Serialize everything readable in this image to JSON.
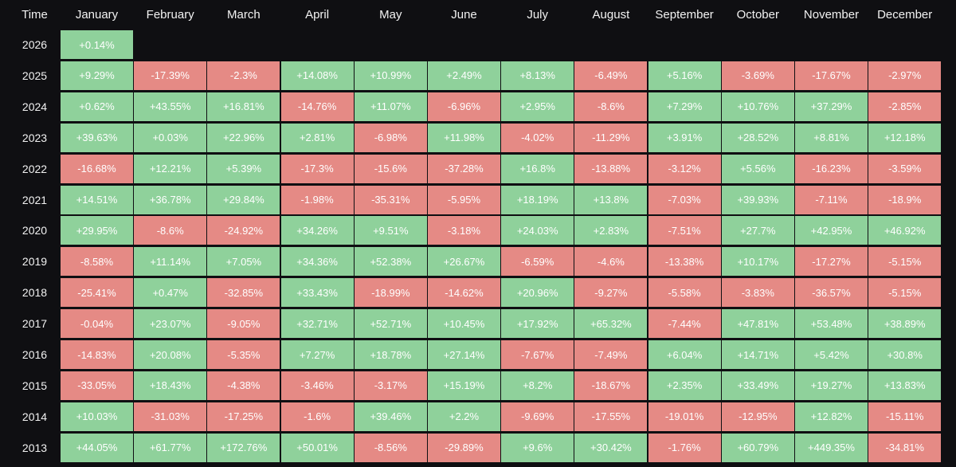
{
  "chart_data": {
    "type": "table",
    "header_label": "Time",
    "months": [
      "January",
      "February",
      "March",
      "April",
      "May",
      "June",
      "July",
      "August",
      "September",
      "October",
      "November",
      "December"
    ],
    "colors": {
      "positive": "#8fd19b",
      "negative": "#e58a85",
      "background": "#0f0f12"
    },
    "rows": [
      {
        "year": "2026",
        "values": [
          "+0.14%"
        ]
      },
      {
        "year": "2025",
        "values": [
          "+9.29%",
          "-17.39%",
          "-2.3%",
          "+14.08%",
          "+10.99%",
          "+2.49%",
          "+8.13%",
          "-6.49%",
          "+5.16%",
          "-3.69%",
          "-17.67%",
          "-2.97%"
        ]
      },
      {
        "year": "2024",
        "values": [
          "+0.62%",
          "+43.55%",
          "+16.81%",
          "-14.76%",
          "+11.07%",
          "-6.96%",
          "+2.95%",
          "-8.6%",
          "+7.29%",
          "+10.76%",
          "+37.29%",
          "-2.85%"
        ]
      },
      {
        "year": "2023",
        "values": [
          "+39.63%",
          "+0.03%",
          "+22.96%",
          "+2.81%",
          "-6.98%",
          "+11.98%",
          "-4.02%",
          "-11.29%",
          "+3.91%",
          "+28.52%",
          "+8.81%",
          "+12.18%"
        ]
      },
      {
        "year": "2022",
        "values": [
          "-16.68%",
          "+12.21%",
          "+5.39%",
          "-17.3%",
          "-15.6%",
          "-37.28%",
          "+16.8%",
          "-13.88%",
          "-3.12%",
          "+5.56%",
          "-16.23%",
          "-3.59%"
        ]
      },
      {
        "year": "2021",
        "values": [
          "+14.51%",
          "+36.78%",
          "+29.84%",
          "-1.98%",
          "-35.31%",
          "-5.95%",
          "+18.19%",
          "+13.8%",
          "-7.03%",
          "+39.93%",
          "-7.11%",
          "-18.9%"
        ]
      },
      {
        "year": "2020",
        "values": [
          "+29.95%",
          "-8.6%",
          "-24.92%",
          "+34.26%",
          "+9.51%",
          "-3.18%",
          "+24.03%",
          "+2.83%",
          "-7.51%",
          "+27.7%",
          "+42.95%",
          "+46.92%"
        ]
      },
      {
        "year": "2019",
        "values": [
          "-8.58%",
          "+11.14%",
          "+7.05%",
          "+34.36%",
          "+52.38%",
          "+26.67%",
          "-6.59%",
          "-4.6%",
          "-13.38%",
          "+10.17%",
          "-17.27%",
          "-5.15%"
        ]
      },
      {
        "year": "2018",
        "values": [
          "-25.41%",
          "+0.47%",
          "-32.85%",
          "+33.43%",
          "-18.99%",
          "-14.62%",
          "+20.96%",
          "-9.27%",
          "-5.58%",
          "-3.83%",
          "-36.57%",
          "-5.15%"
        ]
      },
      {
        "year": "2017",
        "values": [
          "-0.04%",
          "+23.07%",
          "-9.05%",
          "+32.71%",
          "+52.71%",
          "+10.45%",
          "+17.92%",
          "+65.32%",
          "-7.44%",
          "+47.81%",
          "+53.48%",
          "+38.89%"
        ]
      },
      {
        "year": "2016",
        "values": [
          "-14.83%",
          "+20.08%",
          "-5.35%",
          "+7.27%",
          "+18.78%",
          "+27.14%",
          "-7.67%",
          "-7.49%",
          "+6.04%",
          "+14.71%",
          "+5.42%",
          "+30.8%"
        ]
      },
      {
        "year": "2015",
        "values": [
          "-33.05%",
          "+18.43%",
          "-4.38%",
          "-3.46%",
          "-3.17%",
          "+15.19%",
          "+8.2%",
          "-18.67%",
          "+2.35%",
          "+33.49%",
          "+19.27%",
          "+13.83%"
        ]
      },
      {
        "year": "2014",
        "values": [
          "+10.03%",
          "-31.03%",
          "-17.25%",
          "-1.6%",
          "+39.46%",
          "+2.2%",
          "-9.69%",
          "-17.55%",
          "-19.01%",
          "-12.95%",
          "+12.82%",
          "-15.11%"
        ]
      },
      {
        "year": "2013",
        "values": [
          "+44.05%",
          "+61.77%",
          "+172.76%",
          "+50.01%",
          "-8.56%",
          "-29.89%",
          "+9.6%",
          "+30.42%",
          "-1.76%",
          "+60.79%",
          "+449.35%",
          "-34.81%"
        ]
      }
    ]
  }
}
